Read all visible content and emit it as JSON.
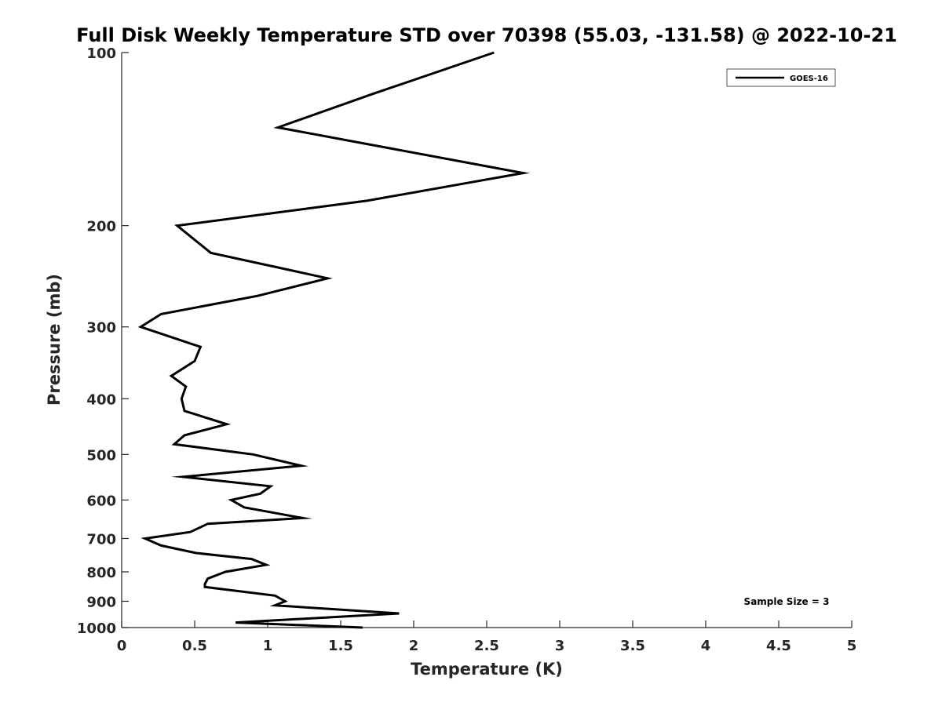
{
  "chart_data": {
    "type": "line",
    "title": "Full Disk Weekly Temperature STD over 70398 (55.03, -131.58) @ 2022-10-21",
    "xlabel": "Temperature (K)",
    "ylabel": "Pressure (mb)",
    "xlim": [
      0,
      5
    ],
    "ylim": [
      100,
      1000
    ],
    "y_scale": "log",
    "y_reversed": true,
    "x_ticks": [
      "0",
      "0.5",
      "1",
      "1.5",
      "2",
      "2.5",
      "3",
      "3.5",
      "4",
      "4.5",
      "5"
    ],
    "y_ticks": [
      "100",
      "200",
      "300",
      "400",
      "500",
      "600",
      "700",
      "800",
      "900",
      "1000"
    ],
    "legend": {
      "position": "top-right",
      "entries": [
        "GOES-16"
      ]
    },
    "annotation": "Sample Size = 3",
    "grid": false,
    "series": [
      {
        "name": "GOES-16",
        "color": "#000000",
        "points": [
          [
            2.55,
            100
          ],
          [
            1.72,
            118
          ],
          [
            1.07,
            135
          ],
          [
            2.75,
            162
          ],
          [
            1.68,
            181
          ],
          [
            0.38,
            200
          ],
          [
            0.61,
            223
          ],
          [
            1.41,
            247
          ],
          [
            0.93,
            265
          ],
          [
            0.27,
            285
          ],
          [
            0.13,
            300
          ],
          [
            0.54,
            325
          ],
          [
            0.5,
            344
          ],
          [
            0.34,
            365
          ],
          [
            0.44,
            381
          ],
          [
            0.41,
            400
          ],
          [
            0.43,
            420
          ],
          [
            0.72,
            443
          ],
          [
            0.43,
            463
          ],
          [
            0.36,
            480
          ],
          [
            0.9,
            500
          ],
          [
            1.23,
            523
          ],
          [
            0.42,
            547
          ],
          [
            1.02,
            568
          ],
          [
            0.95,
            585
          ],
          [
            0.75,
            600
          ],
          [
            0.84,
            618
          ],
          [
            1.24,
            645
          ],
          [
            0.59,
            660
          ],
          [
            0.47,
            682
          ],
          [
            0.16,
            700
          ],
          [
            0.27,
            720
          ],
          [
            0.51,
            742
          ],
          [
            0.89,
            760
          ],
          [
            0.99,
            778
          ],
          [
            0.71,
            800
          ],
          [
            0.59,
            822
          ],
          [
            0.57,
            840
          ],
          [
            0.57,
            850
          ],
          [
            1.05,
            880
          ],
          [
            1.12,
            900
          ],
          [
            1.05,
            915
          ],
          [
            1.9,
            945
          ],
          [
            0.78,
            980
          ],
          [
            1.65,
            1000
          ]
        ]
      }
    ]
  }
}
